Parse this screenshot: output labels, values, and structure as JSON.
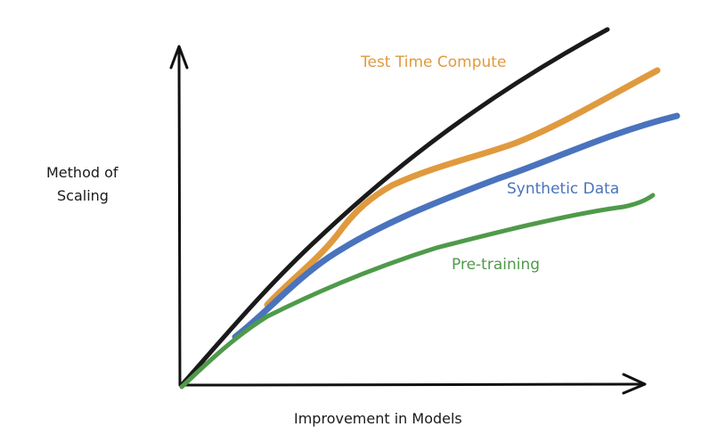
{
  "diagram": {
    "y_axis_label_line1": "Method of",
    "y_axis_label_line2": "Scaling",
    "x_axis_label": "Improvement in Models",
    "curves": [
      {
        "id": "overall",
        "label": "",
        "color": "#1a1a1a"
      },
      {
        "id": "test-time-compute",
        "label": "Test Time Compute",
        "color": "#e09a3e"
      },
      {
        "id": "synthetic-data",
        "label": "Synthetic Data",
        "color": "#4a73bd"
      },
      {
        "id": "pre-training",
        "label": "Pre-training",
        "color": "#4f9a4a"
      }
    ],
    "axis_color": "#111111"
  }
}
